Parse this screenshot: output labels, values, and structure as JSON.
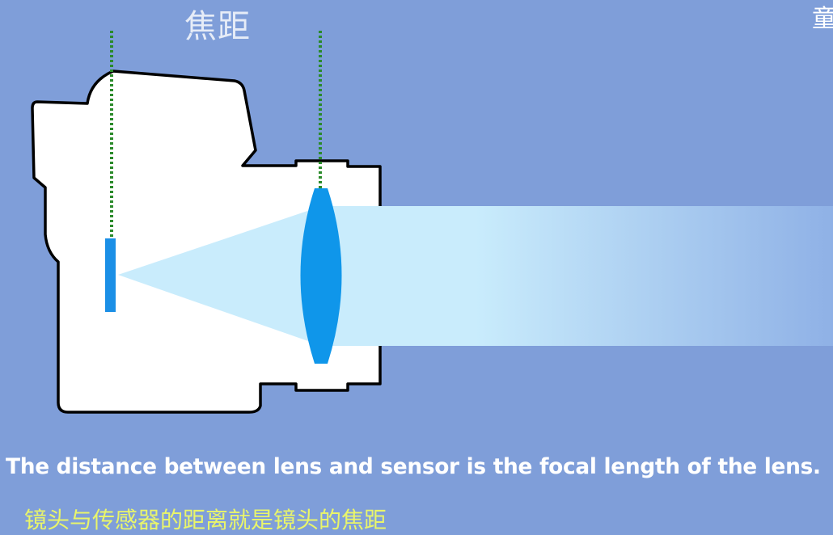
{
  "diagram": {
    "title": "焦距",
    "corner_text": "童"
  },
  "captions": {
    "english": "The distance between lens and sensor is the focal length of the lens.",
    "chinese": "镜头与传感器的距离就是镜头的焦距"
  },
  "colors": {
    "background": "#7f9ed9",
    "camera_body": "#ffffff",
    "light_beam": "#c8ecfc",
    "lens": "#0f96ea",
    "sensor": "#1b8fe6",
    "guide_line": "#2a8a2a",
    "english_caption": "#ffffff",
    "chinese_caption": "#e9f56a"
  }
}
